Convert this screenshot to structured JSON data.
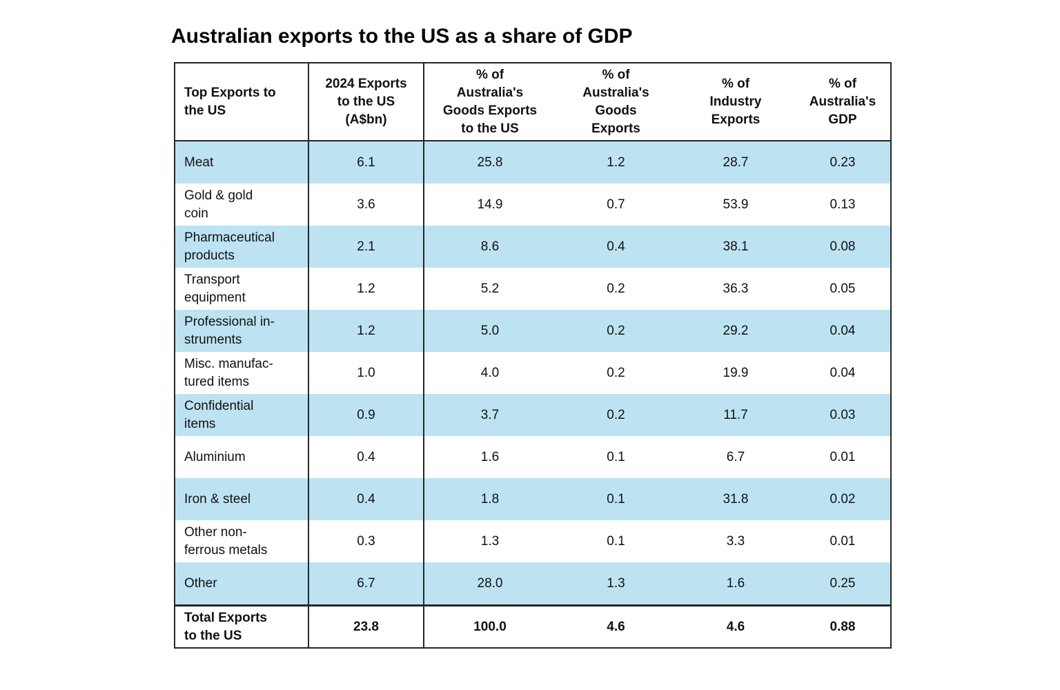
{
  "title": "Australian exports to the US as a share of GDP",
  "chart_data": {
    "type": "table",
    "title": "Australian exports to the US as a share of GDP",
    "columns": [
      "Top Exports to the US",
      "2024 Exports to the US (A$bn)",
      "% of Australia's Goods Exports to the US",
      "% of Australia's Goods Exports",
      "% of Industry Exports",
      "% of Australia's GDP"
    ],
    "rows": [
      {
        "label": "Meat",
        "values": [
          "6.1",
          "25.8",
          "1.2",
          "28.7",
          "0.23"
        ]
      },
      {
        "label": "Gold & gold coin",
        "values": [
          "3.6",
          "14.9",
          "0.7",
          "53.9",
          "0.13"
        ]
      },
      {
        "label": "Pharmaceutical products",
        "values": [
          "2.1",
          "8.6",
          "0.4",
          "38.1",
          "0.08"
        ]
      },
      {
        "label": "Transport equipment",
        "values": [
          "1.2",
          "5.2",
          "0.2",
          "36.3",
          "0.05"
        ]
      },
      {
        "label": "Professional instruments",
        "values": [
          "1.2",
          "5.0",
          "0.2",
          "29.2",
          "0.04"
        ]
      },
      {
        "label": "Misc. manufactured items",
        "values": [
          "1.0",
          "4.0",
          "0.2",
          "19.9",
          "0.04"
        ]
      },
      {
        "label": "Confidential items",
        "values": [
          "0.9",
          "3.7",
          "0.2",
          "11.7",
          "0.03"
        ]
      },
      {
        "label": "Aluminium",
        "values": [
          "0.4",
          "1.6",
          "0.1",
          "6.7",
          "0.01"
        ]
      },
      {
        "label": "Iron & steel",
        "values": [
          "0.4",
          "1.8",
          "0.1",
          "31.8",
          "0.02"
        ]
      },
      {
        "label": "Other non-ferrous metals",
        "values": [
          "0.3",
          "1.3",
          "0.1",
          "3.3",
          "0.01"
        ]
      },
      {
        "label": "Other",
        "values": [
          "6.7",
          "28.0",
          "1.3",
          "1.6",
          "0.25"
        ]
      }
    ],
    "total_row": {
      "label": "Total Exports to the US",
      "values": [
        "23.8",
        "100.0",
        "4.6",
        "4.6",
        "0.88"
      ]
    },
    "layout": {
      "row_highlight_pattern": "alternating starting with first data row",
      "grid": "vertical rules after first two columns only"
    }
  },
  "display": {
    "headers": [
      "Top Exports to\nthe US",
      "2024 Exports\nto the US\n(A$bn)",
      "% of\nAustralia's\nGoods Exports\nto the US",
      "% of\nAustralia's\nGoods\nExports",
      "% of\nIndustry\nExports",
      "% of\nAustralia's\nGDP"
    ],
    "row_labels": [
      "Meat",
      "Gold & gold\ncoin",
      "Pharmaceutical\nproducts",
      "Transport\nequipment",
      "Professional in-\nstruments",
      "Misc. manufac-\ntured items",
      "Confidential\nitems",
      "Aluminium",
      "Iron & steel",
      "Other non-\nferrous metals",
      "Other"
    ],
    "total_label": "Total Exports\nto the US"
  },
  "colors": {
    "row_highlight": "#BDE3F2",
    "border": "#262626",
    "text": "#111111",
    "background": "#FFFFFF"
  }
}
